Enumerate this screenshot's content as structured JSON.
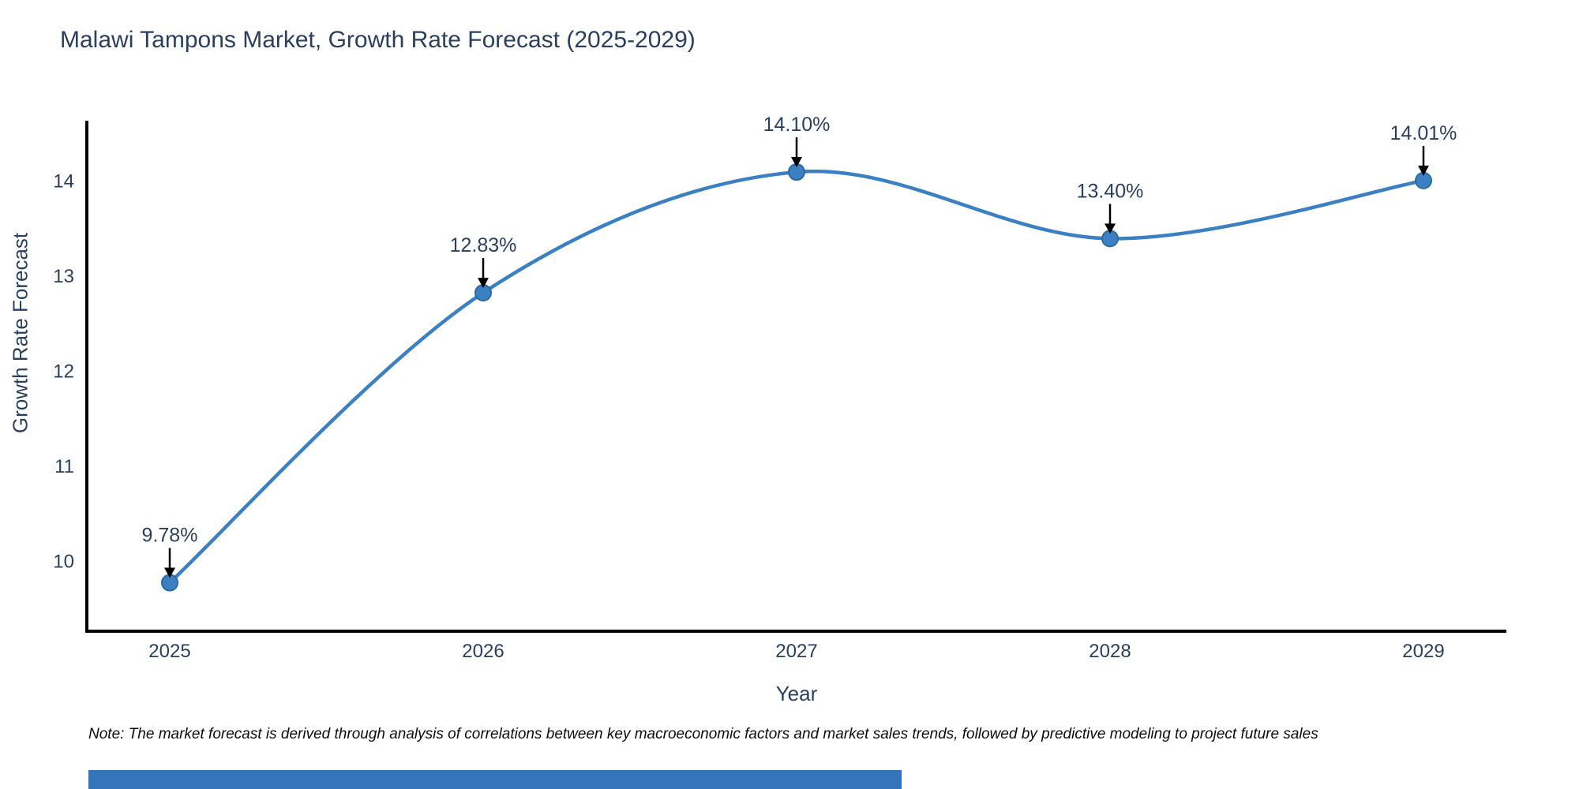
{
  "chart_data": {
    "type": "line",
    "title": "Malawi Tampons Market, Growth Rate Forecast (2025-2029)",
    "xlabel": "Year",
    "ylabel": "Growth Rate Forecast",
    "categories": [
      "2025",
      "2026",
      "2027",
      "2028",
      "2029"
    ],
    "values": [
      9.78,
      12.83,
      14.1,
      13.4,
      14.01
    ],
    "point_labels": [
      "9.78%",
      "12.83%",
      "14.10%",
      "13.40%",
      "14.01%"
    ],
    "y_ticks": [
      "10",
      "11",
      "12",
      "13",
      "14"
    ],
    "ylim": [
      9.27,
      14.64
    ],
    "line_shape": "spline",
    "grid": false,
    "legend": "none",
    "colors": {
      "line": "#3a80c2",
      "marker_fill": "#3a80c2",
      "marker_edge": "#2d6aa0",
      "arrow": "#000000",
      "axis": "#000000",
      "text": "#2a3f5f",
      "accent_bar": "#3474b9"
    }
  },
  "note": "Note: The market forecast is derived through analysis of correlations between key macroeconomic factors and market sales trends, followed by predictive modeling to project future sales"
}
